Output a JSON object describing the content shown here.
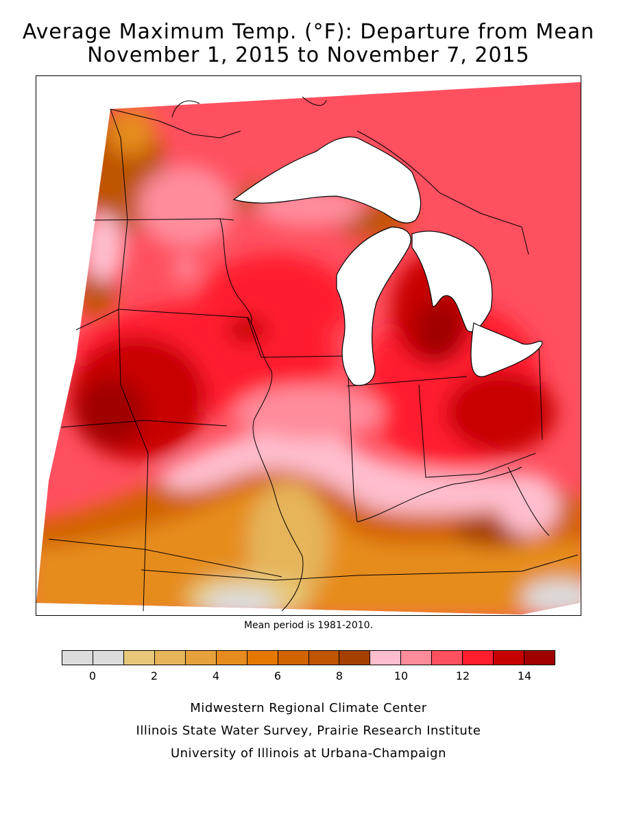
{
  "title": {
    "line1": "Average Maximum Temp. (°F): Departure from Mean",
    "line2": "November 1, 2015 to November 7, 2015"
  },
  "mean_note": "Mean period is 1981-2010.",
  "legend": {
    "colors": [
      "#dcdcdc",
      "#dcdcdc",
      "#e6c878",
      "#e6b45a",
      "#e6a03c",
      "#e68c1e",
      "#e67800",
      "#d26400",
      "#be5500",
      "#a54000",
      "#ffbecd",
      "#ff8c9b",
      "#ff505f",
      "#ff1e2d",
      "#c80000",
      "#a00000"
    ],
    "tick_labels": [
      "0",
      "2",
      "4",
      "6",
      "8",
      "10",
      "12",
      "14"
    ]
  },
  "credits": {
    "line1": "Midwestern Regional Climate Center",
    "line2": "Illinois State Water Survey, Prairie Research Institute",
    "line3": "University of Illinois at Urbana-Champaign"
  }
}
